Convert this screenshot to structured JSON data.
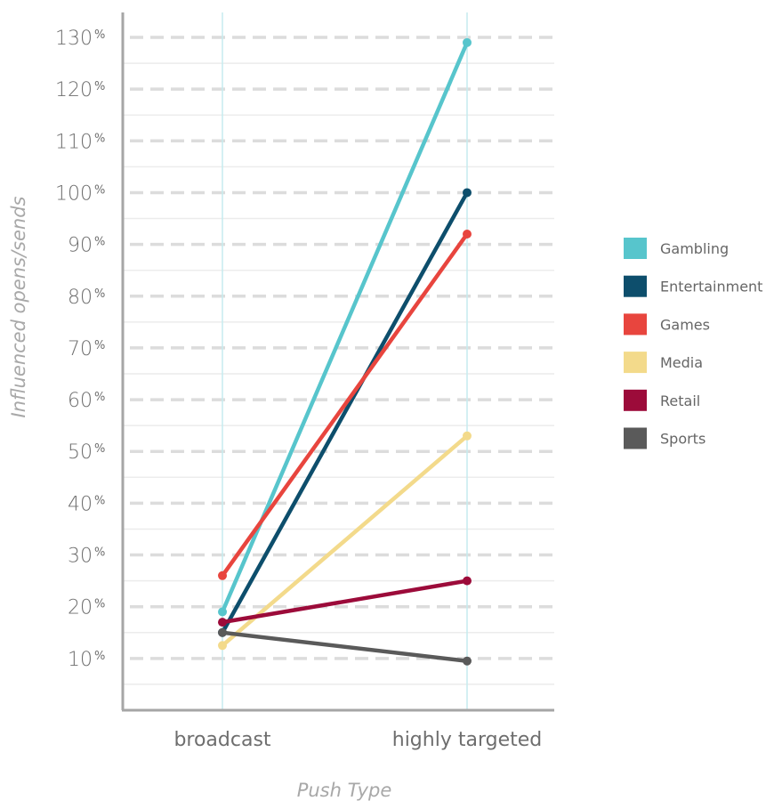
{
  "chart_data": {
    "type": "line",
    "categories": [
      "broadcast",
      "highly targeted"
    ],
    "xlabel": "Push Type",
    "ylabel": "Influenced opens/sends",
    "ylim": [
      0,
      130
    ],
    "yticks": [
      10,
      20,
      30,
      40,
      50,
      60,
      70,
      80,
      90,
      100,
      110,
      120,
      130
    ],
    "ytick_suffix": "%",
    "grid": true,
    "legend_position": "right",
    "series": [
      {
        "name": "Gambling",
        "color": "#57c5cc",
        "values": [
          19,
          129
        ]
      },
      {
        "name": "Entertainment",
        "color": "#0d4e6c",
        "values": [
          15,
          100
        ]
      },
      {
        "name": "Games",
        "color": "#e8453e",
        "values": [
          26,
          92
        ]
      },
      {
        "name": "Media",
        "color": "#f3da8b",
        "values": [
          12.5,
          53
        ]
      },
      {
        "name": "Retail",
        "color": "#9c0b3a",
        "values": [
          17,
          25
        ]
      },
      {
        "name": "Sports",
        "color": "#5a5a5a",
        "values": [
          15,
          9.5
        ]
      }
    ]
  }
}
